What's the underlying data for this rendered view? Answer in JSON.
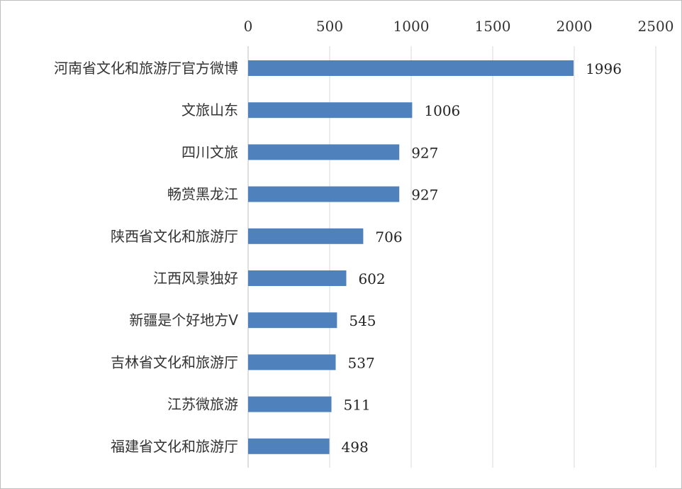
{
  "chart_data": {
    "type": "bar",
    "orientation": "horizontal",
    "axis_position": "top",
    "categories": [
      "河南省文化和旅游厅官方微博",
      "文旅山东",
      "四川文旅",
      "畅赏黑龙江",
      "陕西省文化和旅游厅",
      "江西风景独好",
      "新疆是个好地方V",
      "吉林省文化和旅游厅",
      "江苏微旅游",
      "福建省文化和旅游厅"
    ],
    "values": [
      1996,
      1006,
      927,
      927,
      706,
      602,
      545,
      537,
      511,
      498
    ],
    "xlim": [
      0,
      2500
    ],
    "xticks": [
      0,
      500,
      1000,
      1500,
      2000,
      2500
    ],
    "grid": true,
    "bar_color": "#4f81bd",
    "grid_color": "#d9d9d9",
    "title": "",
    "xlabel": "",
    "ylabel": ""
  }
}
